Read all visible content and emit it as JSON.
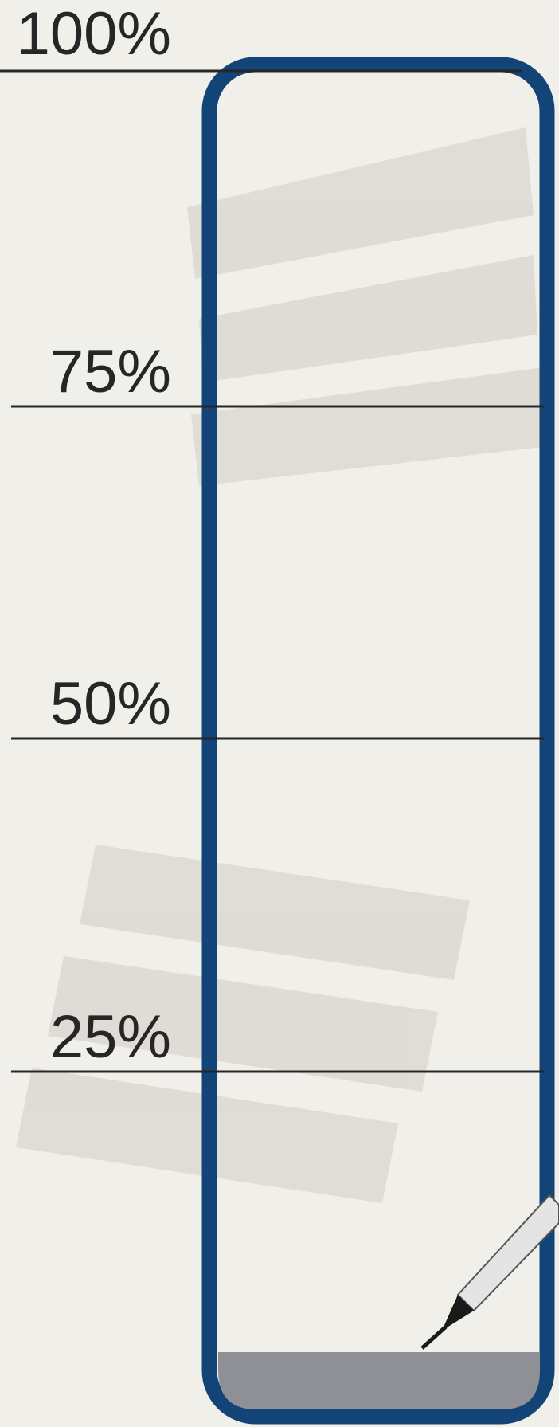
{
  "gauge": {
    "levels": [
      {
        "label": "100%"
      },
      {
        "label": "75%"
      },
      {
        "label": "50%"
      },
      {
        "label": "25%"
      }
    ]
  }
}
